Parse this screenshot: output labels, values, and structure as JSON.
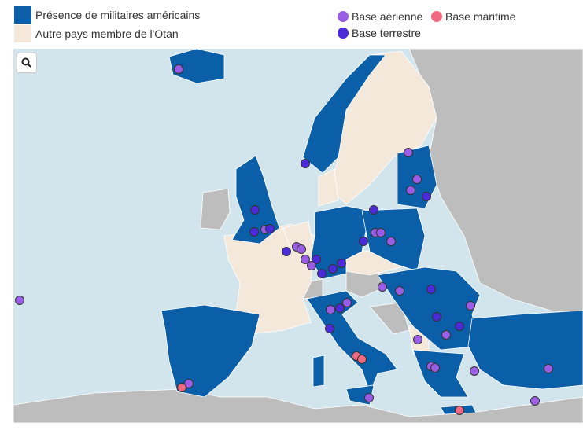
{
  "legend": {
    "presence": "Présence de militaires américains",
    "nato": "Autre pays membre de l'Otan",
    "air": "Base aérienne",
    "sea": "Base maritime",
    "land": "Base terrestre"
  }
}
